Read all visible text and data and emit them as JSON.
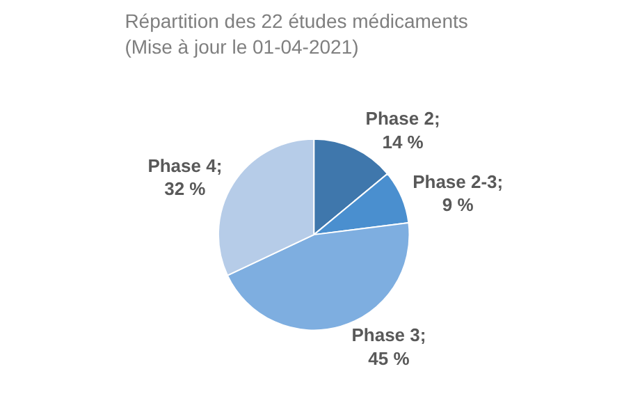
{
  "chart_data": {
    "type": "pie",
    "title": "Répartition des 22 études médicaments\n(Mise à jour le 01-04-2021)",
    "categories": [
      "Phase 2",
      "Phase 2-3",
      "Phase 3",
      "Phase 4"
    ],
    "values": [
      14,
      9,
      45,
      32
    ],
    "colors": [
      "#3f77ac",
      "#4a8fcf",
      "#7eaee0",
      "#b6cce8"
    ],
    "value_labels": [
      ";\n14 %",
      ";\n9 %",
      ";\n45 %",
      ";\n32 %"
    ],
    "legend": false
  }
}
